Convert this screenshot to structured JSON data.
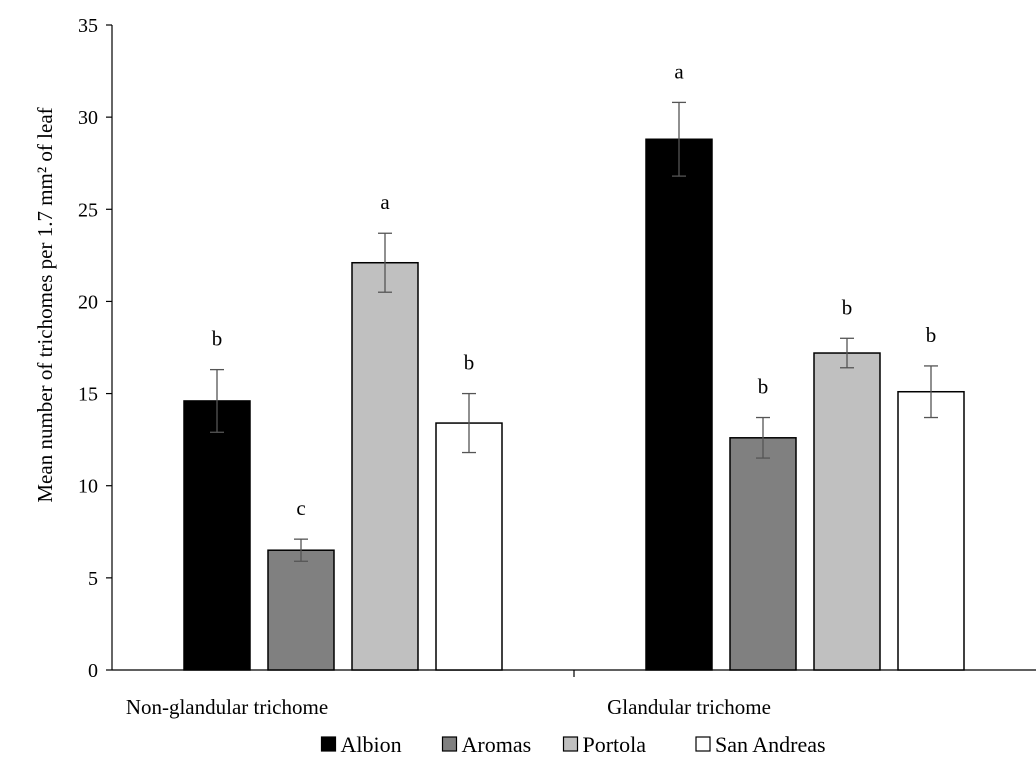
{
  "chart_data": {
    "type": "bar",
    "title": "",
    "xlabel": "",
    "ylabel": "Mean number of trichomes per 1.7 mm² of leaf",
    "ylim": [
      0,
      35
    ],
    "yticks": [
      0,
      5,
      10,
      15,
      20,
      25,
      30,
      35
    ],
    "grid": false,
    "legend_position": "bottom",
    "categories": [
      "Non-glandular trichome",
      "Glandular trichome"
    ],
    "series": [
      {
        "name": "Albion",
        "color": "#000000",
        "values": [
          14.6,
          28.8
        ],
        "errors": [
          1.7,
          2.0
        ],
        "labels": [
          "b",
          "a"
        ]
      },
      {
        "name": "Aromas",
        "color": "#808080",
        "values": [
          6.5,
          12.6
        ],
        "errors": [
          0.6,
          1.1
        ],
        "labels": [
          "c",
          "b"
        ]
      },
      {
        "name": "Portola",
        "color": "#c0c0c0",
        "values": [
          22.1,
          17.2
        ],
        "errors": [
          1.6,
          0.8
        ],
        "labels": [
          "a",
          "b"
        ]
      },
      {
        "name": "San Andreas",
        "color": "#ffffff",
        "values": [
          13.4,
          15.1
        ],
        "errors": [
          1.6,
          1.4
        ],
        "labels": [
          "b",
          "b"
        ]
      }
    ]
  }
}
